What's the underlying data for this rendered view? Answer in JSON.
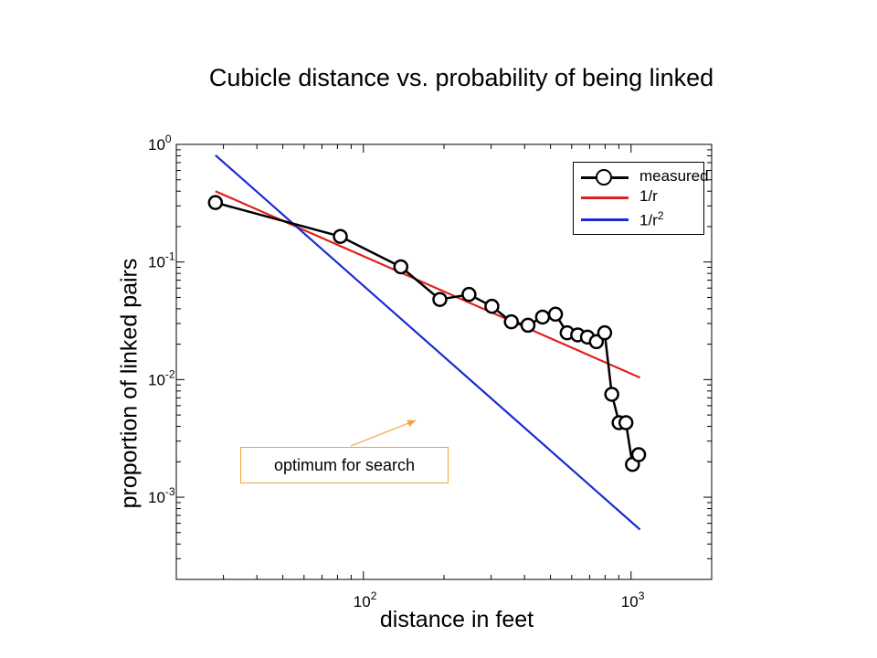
{
  "chart_data": {
    "type": "line",
    "title": "Cubicle distance vs. probability of being linked",
    "xlabel": "distance in feet",
    "ylabel": "proportion of linked pairs",
    "xscale": "log",
    "yscale": "log",
    "xlim": [
      20,
      2000
    ],
    "ylim": [
      0.0002,
      1
    ],
    "xticks": [
      {
        "base": "10",
        "exp": "2",
        "value": 100
      },
      {
        "base": "10",
        "exp": "3",
        "value": 1000
      }
    ],
    "yticks": [
      {
        "base": "10",
        "exp": "0",
        "value": 1
      },
      {
        "base": "10",
        "exp": "-1",
        "value": 0.1
      },
      {
        "base": "10",
        "exp": "-2",
        "value": 0.01
      },
      {
        "base": "10",
        "exp": "-3",
        "value": 0.001
      }
    ],
    "grid": false,
    "legend_position": "top-right",
    "series": [
      {
        "name": "measured",
        "color": "#000000",
        "marker": "circle",
        "x": [
          28,
          82,
          138,
          193,
          248,
          302,
          357,
          412,
          467,
          522,
          577,
          632,
          687,
          742,
          797,
          847,
          902,
          957,
          1012,
          1067
        ],
        "y": [
          0.32,
          0.165,
          0.091,
          0.048,
          0.053,
          0.042,
          0.031,
          0.029,
          0.034,
          0.036,
          0.025,
          0.024,
          0.023,
          0.021,
          0.025,
          0.0075,
          0.0043,
          0.0043,
          0.0019,
          0.0023
        ]
      },
      {
        "name": "1/r",
        "color": "#e0201e",
        "x": [
          28,
          1080
        ],
        "y": [
          0.4,
          0.0104
        ]
      },
      {
        "name": "1/r",
        "name_superscript": "2",
        "color": "#1c2bd0",
        "x": [
          28,
          1080
        ],
        "y": [
          0.81,
          0.00053
        ]
      }
    ],
    "annotations": [
      {
        "text": "optimum for search",
        "color": "#f2a23a",
        "points_to": {
          "x": 157,
          "y": 0.0045
        }
      }
    ]
  }
}
